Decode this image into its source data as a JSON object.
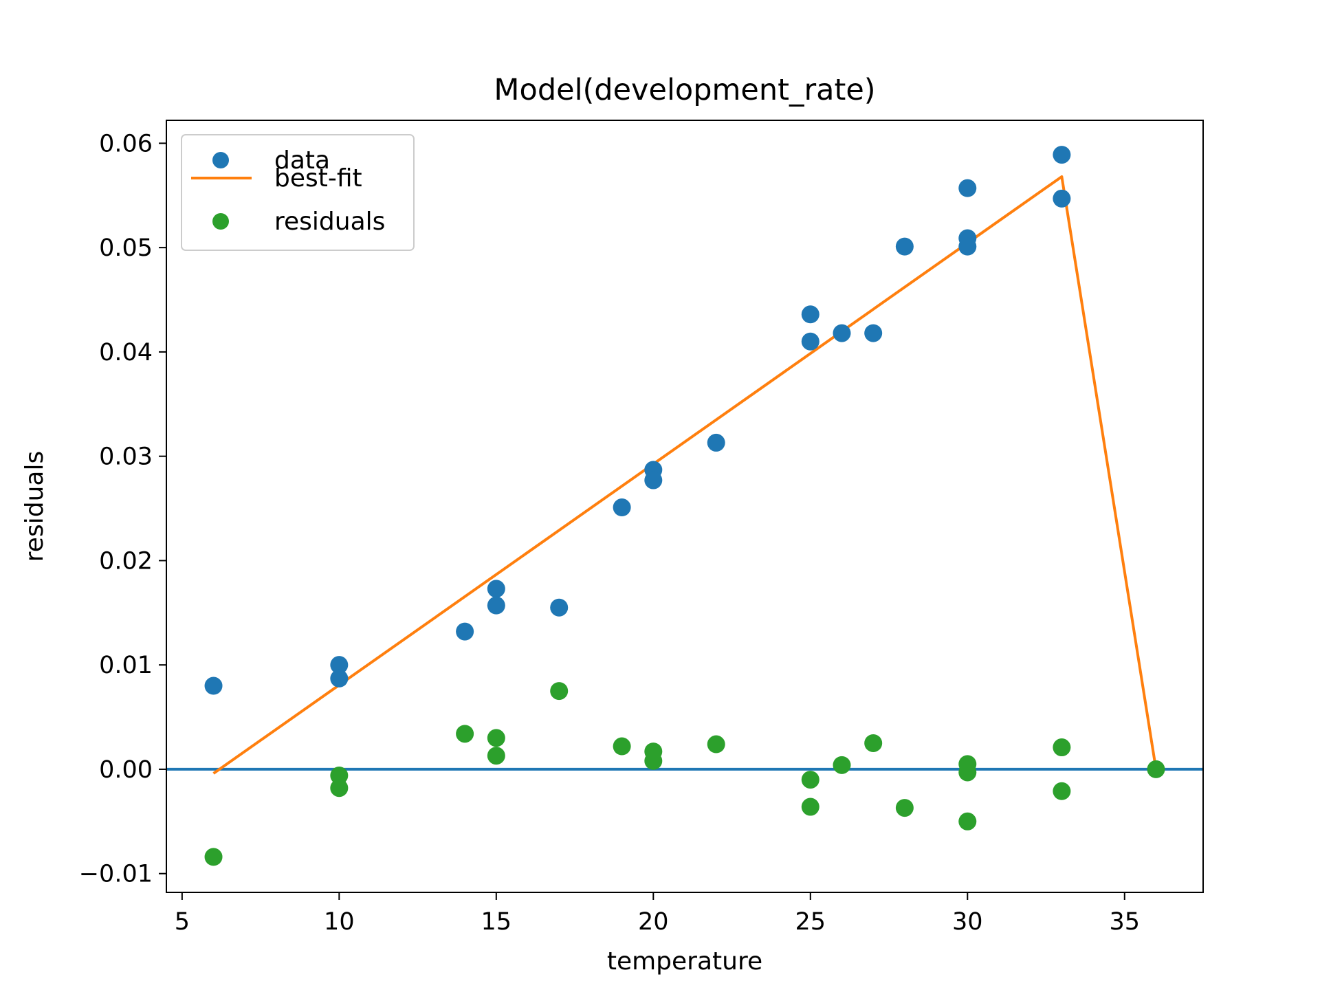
{
  "chart_data": {
    "type": "scatter",
    "title": "Model(development_rate)",
    "xlabel": "temperature",
    "ylabel": "residuals",
    "xlim": [
      4.5,
      37.5
    ],
    "ylim": [
      -0.0118,
      0.0622
    ],
    "xticks": [
      5,
      10,
      15,
      20,
      25,
      30,
      35
    ],
    "xtick_labels": [
      "5",
      "10",
      "15",
      "20",
      "25",
      "30",
      "35"
    ],
    "yticks": [
      -0.01,
      0.0,
      0.01,
      0.02,
      0.03,
      0.04,
      0.05,
      0.06
    ],
    "ytick_labels": [
      "−0.01",
      "0.00",
      "0.01",
      "0.02",
      "0.03",
      "0.04",
      "0.05",
      "0.06"
    ],
    "grid": false,
    "legend_position": "top-left",
    "series": [
      {
        "name": "data",
        "kind": "scatter",
        "color": "#1f77b4",
        "x": [
          6,
          10,
          10,
          14,
          15,
          15,
          17,
          19,
          20,
          20,
          22,
          25,
          25,
          26,
          27,
          28,
          30,
          30,
          30,
          33,
          33
        ],
        "y": [
          0.008,
          0.01,
          0.0087,
          0.0132,
          0.0173,
          0.0157,
          0.0155,
          0.0251,
          0.0287,
          0.0277,
          0.0313,
          0.0436,
          0.041,
          0.0418,
          0.0418,
          0.0501,
          0.0557,
          0.0509,
          0.0501,
          0.0589,
          0.0547
        ]
      },
      {
        "name": "best-fit",
        "kind": "line",
        "color": "#ff7f0e",
        "x": [
          6,
          33,
          36
        ],
        "y": [
          -0.0004,
          0.0568,
          0.0
        ]
      },
      {
        "name": "residuals",
        "kind": "scatter",
        "color": "#2ca02c",
        "x": [
          6,
          10,
          10,
          14,
          15,
          15,
          17,
          19,
          20,
          20,
          22,
          25,
          25,
          26,
          27,
          28,
          30,
          30,
          30,
          33,
          33,
          36
        ],
        "y": [
          -0.0084,
          -0.0006,
          -0.0018,
          0.0034,
          0.003,
          0.0013,
          0.0075,
          0.0022,
          0.0017,
          0.0008,
          0.0024,
          -0.001,
          -0.0036,
          0.0004,
          0.0025,
          -0.0037,
          0.0005,
          -0.0003,
          -0.005,
          0.0021,
          -0.0021,
          0.0
        ]
      }
    ],
    "hlines": [
      {
        "y": 0.0,
        "color": "#1f77b4"
      }
    ]
  }
}
